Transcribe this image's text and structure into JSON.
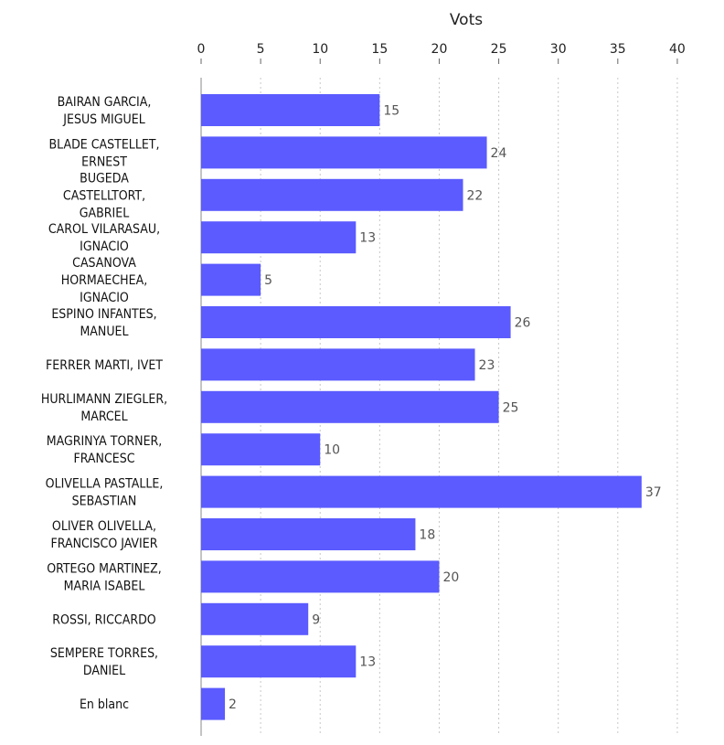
{
  "chart_data": {
    "type": "bar",
    "orientation": "horizontal",
    "xlabel": "Vots",
    "xlim": [
      0,
      43
    ],
    "x_ticks": [
      0,
      5,
      10,
      15,
      20,
      25,
      30,
      35,
      40
    ],
    "grid": true,
    "bar_color": "#5b5bff",
    "categories": [
      [
        "BAIRAN GARCIA,",
        "JESUS MIGUEL"
      ],
      [
        "BLADE CASTELLET,",
        "ERNEST"
      ],
      [
        "BUGEDA",
        "CASTELLTORT,",
        "GABRIEL"
      ],
      [
        "CAROL VILARASAU,",
        "IGNACIO"
      ],
      [
        "CASANOVA",
        "HORMAECHEA,",
        "IGNACIO"
      ],
      [
        "ESPINO INFANTES,",
        "MANUEL"
      ],
      [
        "FERRER MARTI, IVET"
      ],
      [
        "HURLIMANN ZIEGLER,",
        "MARCEL"
      ],
      [
        "MAGRINYA TORNER,",
        "FRANCESC"
      ],
      [
        "OLIVELLA PASTALLE,",
        "SEBASTIAN"
      ],
      [
        "OLIVER OLIVELLA,",
        "FRANCISCO JAVIER"
      ],
      [
        "ORTEGO MARTINEZ,",
        "MARIA ISABEL"
      ],
      [
        "ROSSI, RICCARDO"
      ],
      [
        "SEMPERE TORRES,",
        "DANIEL"
      ],
      [
        "En blanc"
      ]
    ],
    "values": [
      15,
      24,
      22,
      13,
      5,
      26,
      23,
      25,
      10,
      37,
      18,
      20,
      9,
      13,
      2
    ]
  }
}
